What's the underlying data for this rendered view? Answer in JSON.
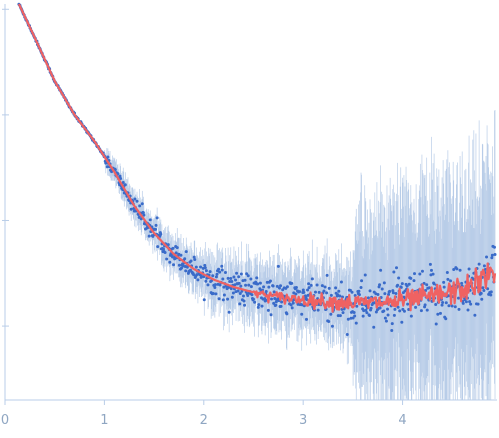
{
  "chart_data": {
    "type": "scatter",
    "title": "",
    "xlabel": "",
    "ylabel": "",
    "xlim": [
      0,
      4.95
    ],
    "ylim": [
      -5.2,
      -1.45
    ],
    "yscale": "log",
    "x_ticks": [
      "0",
      "1",
      "2",
      "3",
      "4"
    ],
    "x_tick_values": [
      0,
      1,
      2,
      3,
      4
    ],
    "y_tick_values": [
      -4.5,
      -3.5,
      -2.5,
      -1.5
    ],
    "grid": false,
    "legend": "none",
    "series": [
      {
        "kind": "experimental-points-with-error-bars",
        "color": "#3a6bc9",
        "errorbar_color": "#b9cde8",
        "x": [
          0.14,
          0.3,
          0.5,
          0.7,
          0.9,
          1.1,
          1.3,
          1.5,
          1.7,
          1.9,
          2.1,
          2.3,
          2.5,
          2.7,
          2.9,
          3.1,
          3.3,
          3.5,
          3.7,
          3.9,
          4.1,
          4.3,
          4.5,
          4.7,
          4.9
        ],
        "y": [
          -1.45,
          -1.77,
          -2.18,
          -2.5,
          -2.75,
          -3.04,
          -3.36,
          -3.62,
          -3.82,
          -3.96,
          -4.06,
          -4.13,
          -4.18,
          -4.22,
          -4.24,
          -4.26,
          -4.27,
          -4.28,
          -4.28,
          -4.27,
          -4.25,
          -4.22,
          -4.18,
          -4.12,
          -4.0
        ]
      },
      {
        "kind": "model-fit",
        "color": "#ef6262",
        "x": [
          0.14,
          0.3,
          0.5,
          0.7,
          0.9,
          1.1,
          1.3,
          1.5,
          1.7,
          1.9,
          2.1,
          2.3,
          2.5,
          2.7,
          2.9,
          3.1,
          3.3,
          3.5,
          3.7,
          3.9,
          4.1,
          4.3,
          4.5,
          4.7,
          4.9
        ],
        "y": [
          -1.45,
          -1.77,
          -2.18,
          -2.5,
          -2.75,
          -3.04,
          -3.36,
          -3.62,
          -3.82,
          -3.96,
          -4.06,
          -4.13,
          -4.18,
          -4.22,
          -4.24,
          -4.26,
          -4.27,
          -4.28,
          -4.28,
          -4.27,
          -4.25,
          -4.22,
          -4.18,
          -4.12,
          -4.0
        ]
      }
    ]
  },
  "colors": {
    "axis": "#b9cde8",
    "tick_label": "#8fa6c2",
    "points": "#3a6bc9",
    "errorbars": "#b9cde8",
    "fit": "#ef6262"
  }
}
